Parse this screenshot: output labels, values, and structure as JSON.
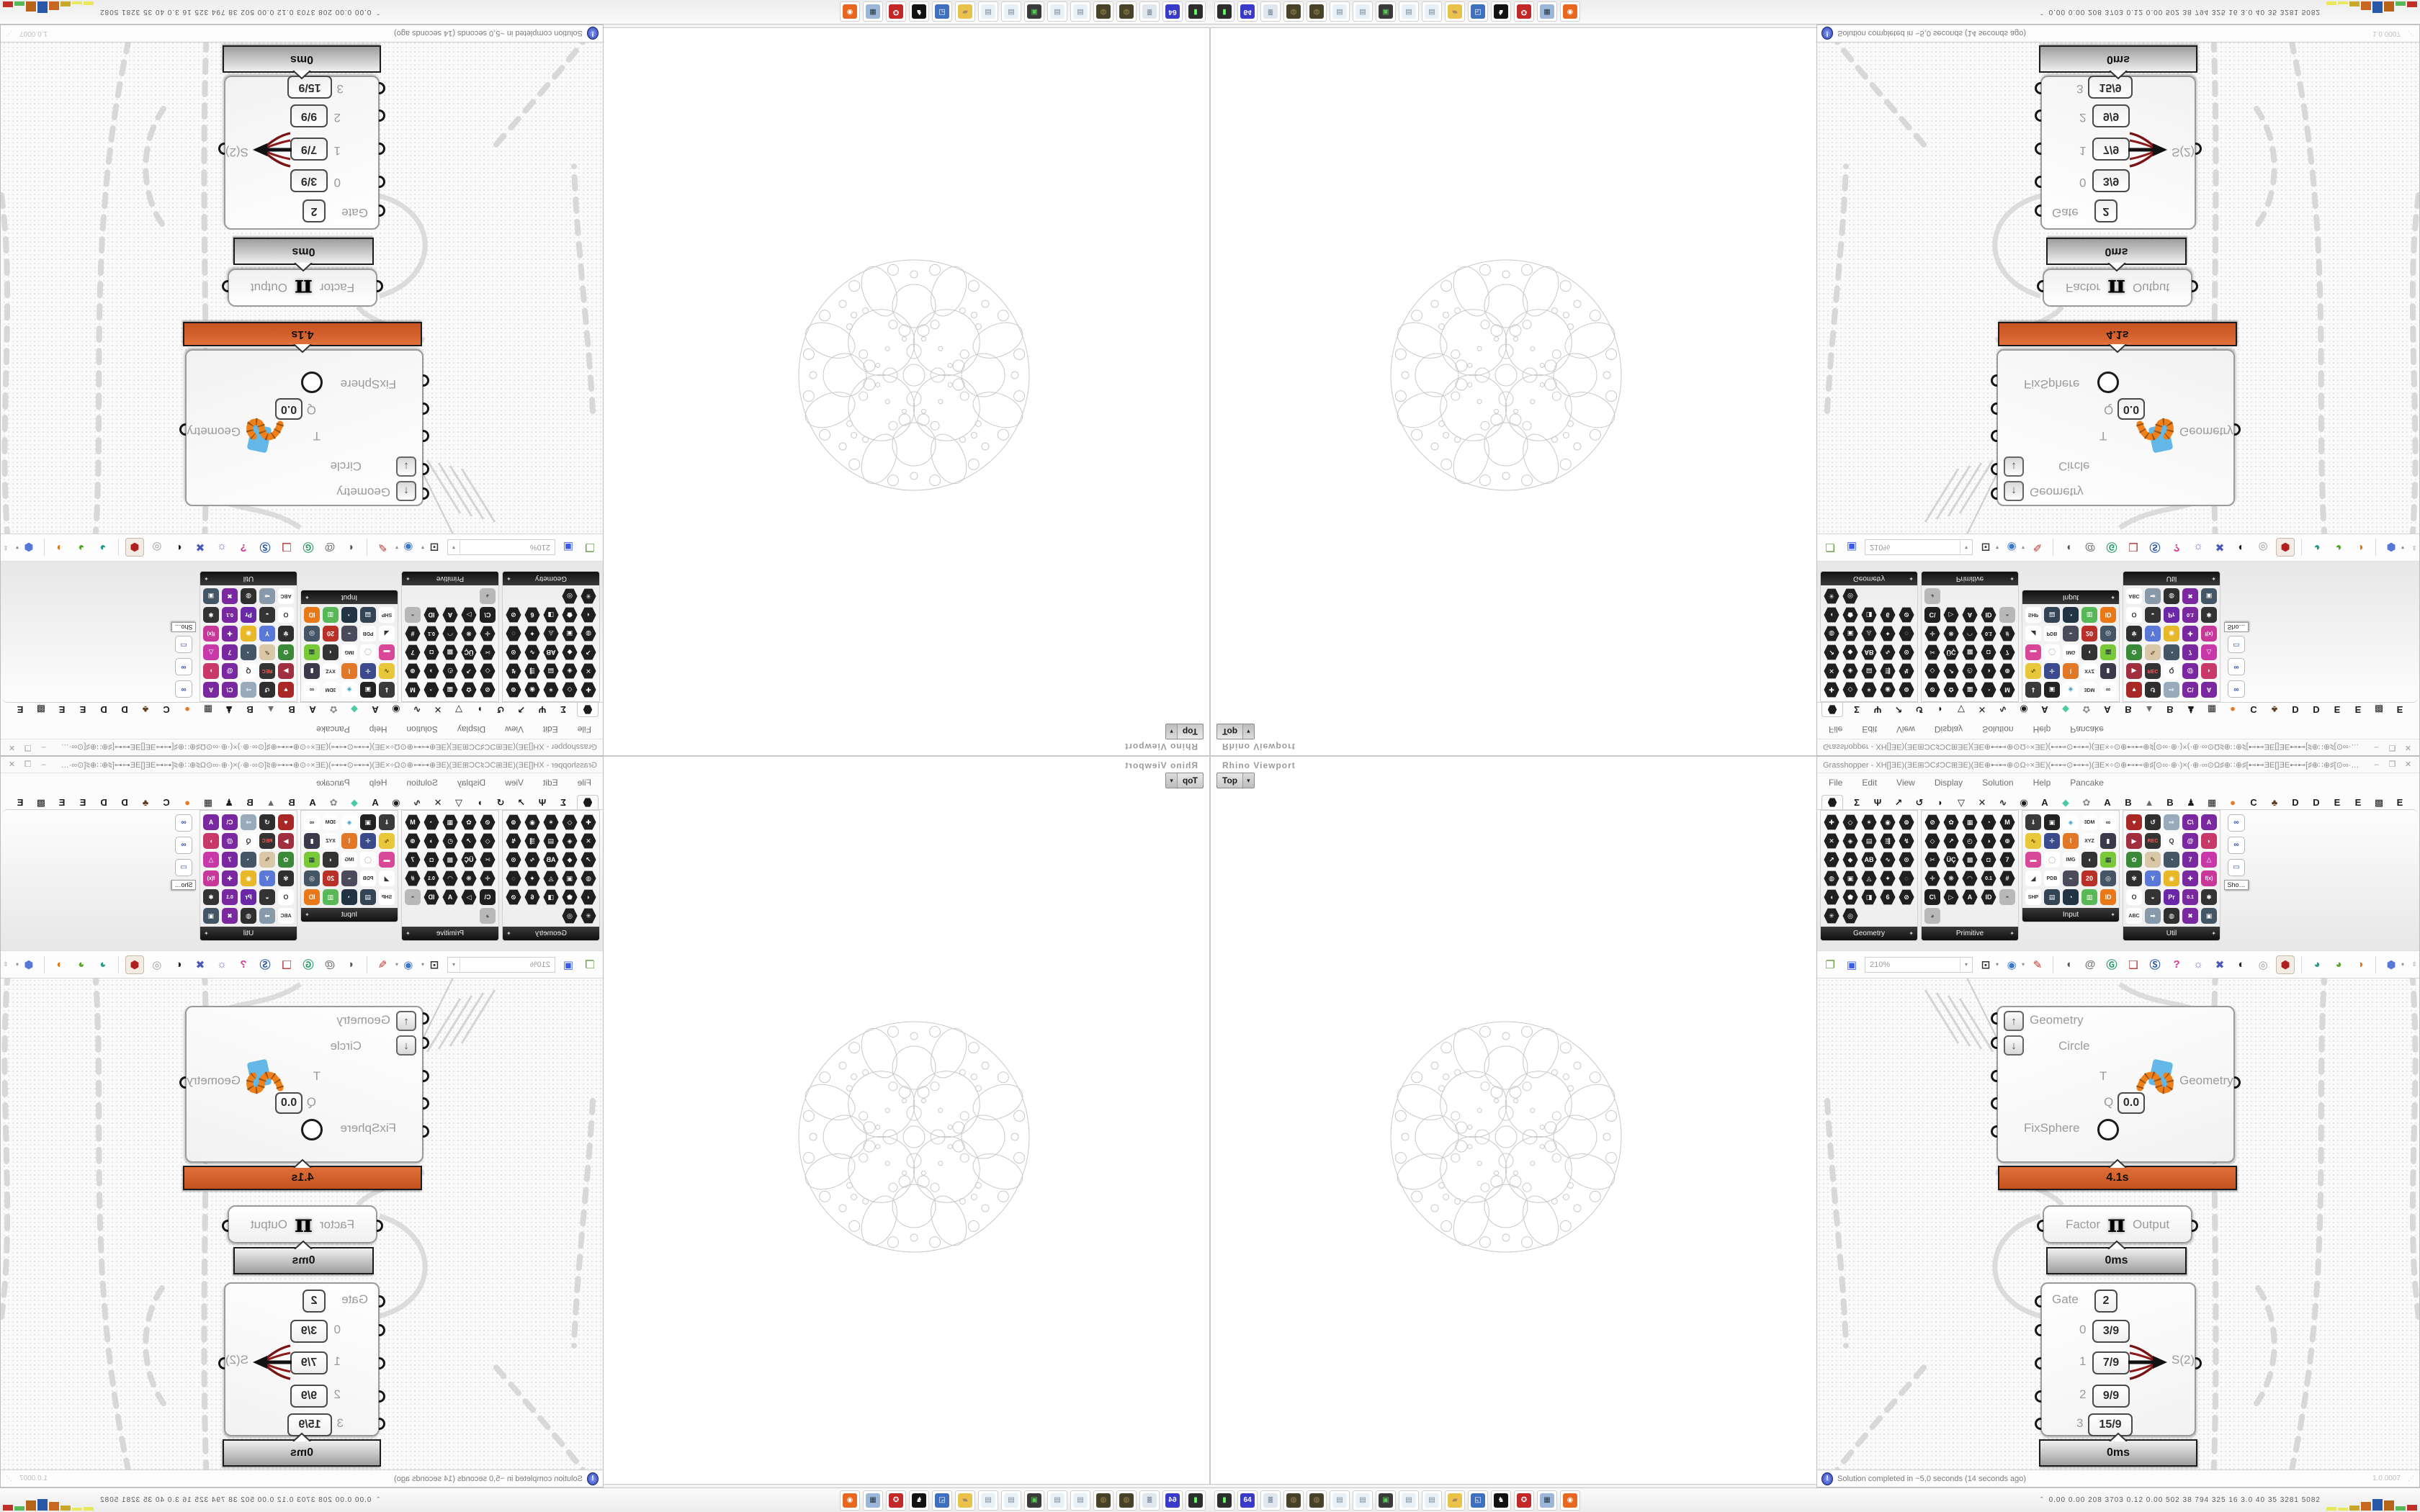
{
  "rhino": {
    "title": "Rhino Viewport",
    "viewport_tab": "Top",
    "tab_drop_icon": "▾"
  },
  "gh": {
    "title_text": "Grasshopper - XH[]ƎE)(ƎE⊞ƆC♯ƆC⊞ƎE)(ƎE⊕⊷⊷⊕⊙Ω÷×ƎE)(⊷⊷⊙⊷⊷)(ƎE×÷⊙⊕⊷⊷⊕♯[⊙∞·⊕·)×(·⊕·∞⊙Ω♯⊕∷⊕♯[⊷⊷ƎE[]ƎE⊷⊷[♯⊕∷⊕♯[⊙∞·⊕·)×(·⊕·∞⊙Ω♯⊕⊷⊷⊕⊙Ω÷×ƎE)(⊷⊷⊙⊷⊷...",
    "window_buttons": {
      "minimize": "–",
      "maximize": "❒",
      "close": "✕"
    },
    "menu": [
      "File",
      "Edit",
      "View",
      "Display",
      "Solution",
      "Help",
      "Pancake"
    ],
    "tabs": [
      {
        "label": "",
        "name": "tab-params",
        "active": true,
        "hex": true
      },
      {
        "label": "Σ",
        "name": "tab-maths"
      },
      {
        "label": "Ψ",
        "name": "tab-sets"
      },
      {
        "label": "↗",
        "name": "tab-vector"
      },
      {
        "label": "↺",
        "name": "tab-curve"
      },
      {
        "label": "◗",
        "name": "tab-surface"
      },
      {
        "label": "▽",
        "name": "tab-mesh"
      },
      {
        "label": "✕",
        "name": "tab-intersect"
      },
      {
        "label": "∿",
        "name": "tab-transform"
      },
      {
        "label": "◉",
        "name": "tab-display"
      },
      {
        "label": "A",
        "name": "tab-plugin-a1"
      },
      {
        "label": "◆",
        "name": "tab-plugin-gem",
        "color": "#4ec9a8"
      },
      {
        "label": "✿",
        "name": "tab-plugin-paw",
        "color": "#8a8a8a"
      },
      {
        "label": "A",
        "name": "tab-plugin-a2"
      },
      {
        "label": "B",
        "name": "tab-plugin-b1"
      },
      {
        "label": "▲",
        "name": "tab-plugin-mountain",
        "color": "#6a6a6a"
      },
      {
        "label": "B",
        "name": "tab-plugin-b2"
      },
      {
        "label": "♟",
        "name": "tab-plugin-helmet"
      },
      {
        "label": "▦",
        "name": "tab-plugin-grid"
      },
      {
        "label": "●",
        "name": "tab-plugin-galapagos",
        "color": "#e87722"
      },
      {
        "label": "C",
        "name": "tab-plugin-c"
      },
      {
        "label": "♣",
        "name": "tab-plugin-bird",
        "color": "#5a3a1a"
      },
      {
        "label": "D",
        "name": "tab-plugin-d1"
      },
      {
        "label": "D",
        "name": "tab-plugin-d2"
      },
      {
        "label": "E",
        "name": "tab-plugin-e1"
      },
      {
        "label": "E",
        "name": "tab-plugin-e2"
      },
      {
        "label": "▩",
        "name": "tab-plugin-dots"
      },
      {
        "label": "E",
        "name": "tab-plugin-e3"
      }
    ],
    "palette_panels": [
      {
        "label": "Geometry",
        "drop": "✦",
        "cols": 5,
        "icons": [
          "#1f1f1f/#fff/✚/h",
          "#1f1f1f/#fff/◇/h",
          "#1f1f1f/#fff/✶/h",
          "#1f1f1f/#fff/◉/h",
          "#1f1f1f/#fff/⊚/h",
          "#1f1f1f/#fff/✕/h",
          "#1f1f1f/#fff/◈/h",
          "#1f1f1f/#fff/▤/h",
          "#1f1f1f/#fff/⇶/h",
          "#1f1f1f/#fff/↯/h",
          "#1f1f1f/#fff/↗/h",
          "#1f1f1f/#fff/◆/h",
          "#1f1f1f/#fff/AB/h",
          "#1f1f1f/#fff/∿/h",
          "#1f1f1f/#fff/⊙/h",
          "#1f1f1f/#fff/◍/h",
          "#1f1f1f/#fff/▣/h",
          "#1f1f1f/#fff/◬/h",
          "#1f1f1f/#fff/✦/h",
          "#1f1f1f/#fff/◌/h",
          "#1f1f1f/#fff/◖/h",
          "#1f1f1f/#fff/⬟/h",
          "#1f1f1f/#fff/◨/h",
          "#1f1f1f/#fff/6/h",
          "#1f1f1f/#fff/⊘/h",
          "#1f1f1f/#fff/✳/h",
          "#1f1f1f/#fff/◎/h"
        ]
      },
      {
        "label": "Primitive",
        "drop": "✦",
        "cols": 5,
        "icons": [
          "#1f1f1f/#fff/⊘/h",
          "#1f1f1f/#fff/✿/h",
          "#1f1f1f/#fff/▦/h",
          "#1f1f1f/#fff/◔/h",
          "#1f1f1f/#fff/M/h",
          "#1f1f1f/#fff/◇/h",
          "#1f1f1f/#fff/↗/h",
          "#1f1f1f/#fff/◴/h",
          "#1f1f1f/#fff/◑/h",
          "#1f1f1f/#fff/⊕/h",
          "#1f1f1f/#fff/✂/h",
          "#1f1f1f/#fff/ÜÇ/h",
          "#1f1f1f/#fff/▩/h",
          "#1f1f1f/#fff/◘/h",
          "#1f1f1f/#fff/7/h",
          "#1f1f1f/#fff/✛/h",
          "#1f1f1f/#fff/❋/h",
          "#1f1f1f/#fff/◠/h",
          "#1f1f1f/#fff/0.1/h",
          "#1f1f1f/#fff/#/h",
          "#1f1f1f/#fff/C\\//h",
          "#1f1f1f/#fff/▷/h",
          "#1f1f1f/#fff/A/h",
          "#1f1f1f/#fff/ID/h",
          "#b8b8b8/#555/◓/r",
          "#b8b8b8/#555/◕/r"
        ]
      },
      {
        "label": "Input",
        "drop": "✦",
        "cols": 5,
        "icons": [
          "#3a3a3a/#fff/⇓/r",
          "#222222/#fff/▣/r",
          "#ffffff/#38a0c8/◈/r",
          "#ffffff/#333/3DM/r",
          "#ffffff/#333/∞/r",
          "#e8c83a/#554400/∿/r",
          "#3a4a8a/#fff/✛/r",
          "#e07828/#fff/⌇/r",
          "#ffffff/#333/XYZ/r",
          "#3a3a4a/#fff/▮/r",
          "#d84898/#fff/▬/r",
          "#ffffff/#aaa/◯/r",
          "#ffffff/#333/IMG/r",
          "#333333/#fff/◖/r",
          "#78c838/#234/▦/r",
          "#ffffff/#333/◢/r",
          "#ffffff/#333/PDB/r",
          "#4a4a5a/#fff/⌁/r",
          "#b83028/#fff/20/r",
          "#445566/#fff/◎/r",
          "#ffffff/#333/SHP/r",
          "#334455/#fff/▤/r",
          "#223344/#fff/◔/r",
          "#58b858/#fff/▥/r",
          "#e87818/#fff/ID/r"
        ]
      },
      {
        "label": "Util",
        "drop": "✦",
        "cols": 5,
        "icons": [
          "#a82828/#fff/♥/r",
          "#2f2f2f/#fff/↺/r",
          "#99aabb/#fff/⇨/r",
          "#7a28a0/#fff/C\\//r",
          "#7a28a0/#fff/A/r",
          "#a03040/#fff/▶/r",
          "#333333/#ff5555/REC/r",
          "#ffffff/#333/Q/r",
          "#7a28a0/#fff/@/r",
          "#c83868/#fff/◗/r",
          "#3a8a3a/#fff/✿/r",
          "#d8c8a8/#553311/✎/r",
          "#445566/#fff/◔/r",
          "#7a28a0/#fff/7/r",
          "#c838a8/#fff/△/r",
          "#2f2f2f/#fff/✾/r",
          "#5a78d8/#fff/Y/r",
          "#e8b828/#fff/◉/r",
          "#7a28a0/#fff/✚/r",
          "#c83898/#fff/f(x)/r",
          "#ffffff/#333/O/r",
          "#333333/#fff/◒/r",
          "#6a28a8/#fff/Pr/r",
          "#7a28a0/#fff/0.1/r",
          "#333333/#fff/✱/r",
          "#ffffff/#333/ABC/r",
          "#8899aa/#fff/➡/r",
          "#2f2f2f/#fff/◍/r",
          "#7a28a0/#fff/✖/r",
          "#445566/#fff/▣/r"
        ]
      }
    ],
    "mini_panel": {
      "icons": [
        "∞",
        "∞",
        "▭"
      ],
      "show_more": "Sho…"
    },
    "toolbar": {
      "zoom_value": "210%",
      "drop_icon": "▾",
      "scroll_icon": "⇳",
      "items": [
        {
          "name": "open-file-icon",
          "g": "❐",
          "c": "#5a9e3a"
        },
        {
          "name": "save-file-icon",
          "g": "▣",
          "c": "#3a5ae8"
        },
        {
          "name": "zoom-combo",
          "combo": true
        },
        {
          "name": "zoom-extents-icon",
          "g": "⊡",
          "c": "#333333",
          "dd": true
        },
        {
          "name": "preview-eye-icon",
          "g": "◉",
          "c": "#3a78c8",
          "dd": true
        },
        {
          "name": "sketch-pen-icon",
          "g": "✎",
          "c": "#c03028"
        },
        {
          "name": "sep1",
          "sep": true
        },
        {
          "name": "megaphone-icon",
          "g": "◖",
          "c": "#555555"
        },
        {
          "name": "at-badge-icon",
          "g": "@",
          "c": "#777777"
        },
        {
          "name": "gha-globe-icon",
          "g": "Ⓖ",
          "c": "#2a9a6a"
        },
        {
          "name": "window-alert-icon",
          "g": "❑",
          "c": "#b03030"
        },
        {
          "name": "search-s-icon",
          "g": "Ⓢ",
          "c": "#2858a8"
        },
        {
          "name": "help-bag-icon",
          "g": "?",
          "c": "#d83890"
        },
        {
          "name": "light-bulb-icon",
          "g": "☼",
          "c": "#8a6ad8"
        },
        {
          "name": "cross-arrows-icon",
          "g": "✖",
          "c": "#4858b8"
        },
        {
          "name": "bw-circles-icon",
          "g": "◐",
          "c": "#222222"
        },
        {
          "name": "ring-pair-icon",
          "g": "◎",
          "c": "#999999"
        },
        {
          "name": "red-gem-icon",
          "g": "⬢",
          "c": "#b02020",
          "sel": true
        },
        {
          "name": "sep2",
          "sep": true
        },
        {
          "name": "teal-pin-icon",
          "g": "◕",
          "c": "#2a9a8a"
        },
        {
          "name": "green-pin-icon",
          "g": "◕",
          "c": "#58a828"
        },
        {
          "name": "orange-ball-icon",
          "g": "◑",
          "c": "#e07818"
        },
        {
          "name": "sep3",
          "sep": true
        },
        {
          "name": "blue-hex-icon",
          "g": "⬢",
          "c": "#5878d8",
          "dd": true
        }
      ]
    },
    "components": {
      "fixsphere": {
        "inputs": [
          "Geometry",
          "Circle",
          "T",
          "Q",
          "FixSphere"
        ],
        "q_value": "0.0",
        "output": "Geometry",
        "time": "4.1s",
        "time_color": "#cc5a24"
      },
      "factor": {
        "left": "Factor",
        "icon": "π",
        "right": "Output",
        "time": "0ms"
      },
      "gate": {
        "rows": [
          [
            "Gate",
            "2"
          ],
          [
            "0",
            "3/9"
          ],
          [
            "1",
            "7/9"
          ],
          [
            "2",
            "9/9"
          ],
          [
            "3",
            "15/9"
          ]
        ],
        "output": "S(2)",
        "time": "0ms"
      }
    },
    "status": {
      "message": "Solution completed in ~5,0 seconds (14 seconds ago)",
      "version": "1.0.0007",
      "grip": "⋰"
    }
  },
  "taskbar": {
    "chevron": "ˆ",
    "stats": "0.00  0.00  208  3703  0.12  0.00  502  38  794  325  16  3.0  40  35  3281  5082",
    "icons": [
      {
        "name": "vm-console-icon",
        "bg": "#2d2d2d",
        "fg": "#66ff66",
        "g": "▮"
      },
      {
        "name": "floppy-64-icon",
        "bg": "#3a3ac8",
        "fg": "#ffffff",
        "g": "64"
      },
      {
        "name": "scroll-doc-icon",
        "bg": "#dfe6f0",
        "fg": "#667788",
        "g": "≣"
      },
      {
        "name": "cookie-icon",
        "bg": "#4a4228",
        "fg": "#9a8a5a",
        "g": "◍"
      },
      {
        "name": "cookie-icon-2",
        "bg": "#4a4228",
        "fg": "#9a8a5a",
        "g": "◍"
      },
      {
        "name": "notepad-icon",
        "bg": "#e8f0f8",
        "fg": "#778899",
        "g": "▤"
      },
      {
        "name": "notepad-icon-2",
        "bg": "#e8f0f8",
        "fg": "#778899",
        "g": "▤"
      },
      {
        "name": "monitor-green-icon",
        "bg": "#3a3a3a",
        "fg": "#55cc55",
        "g": "▣"
      },
      {
        "name": "notepad-icon-3",
        "bg": "#e8f0f8",
        "fg": "#778899",
        "g": "▤"
      },
      {
        "name": "notepad-icon-4",
        "bg": "#e8f0f8",
        "fg": "#778899",
        "g": "▤"
      },
      {
        "name": "folder-icon",
        "bg": "#e8c24a",
        "fg": "#aa8866",
        "g": "▰"
      },
      {
        "name": "control-panel-icon",
        "bg": "#3f6fbf",
        "fg": "#ffffff",
        "g": "◱"
      },
      {
        "name": "bw-bird-icon",
        "bg": "#111111",
        "fg": "#ffffff",
        "g": "♞"
      },
      {
        "name": "red-badge-icon",
        "bg": "#c22828",
        "fg": "#ffffff",
        "g": "✪"
      },
      {
        "name": "calculator-icon",
        "bg": "#9db7d8",
        "fg": "#223344",
        "g": "▦"
      },
      {
        "name": "firefox-icon",
        "bg": "#e8681f",
        "fg": "#ffffff",
        "g": "◉"
      }
    ],
    "spark_bars": [
      [
        "#e8e85a",
        5
      ],
      [
        "#e8e85a",
        4
      ],
      [
        "#c8a828",
        7
      ],
      [
        "#c86820",
        12
      ],
      [
        "#2858a8",
        16
      ],
      [
        "#b86418",
        14
      ],
      [
        "#58b858",
        6
      ],
      [
        "#c03028",
        8
      ]
    ]
  }
}
